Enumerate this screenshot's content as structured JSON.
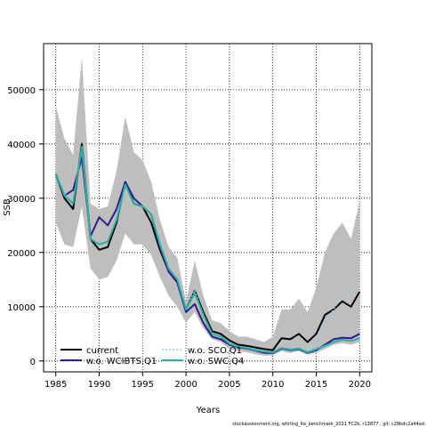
{
  "chart_data": {
    "type": "line",
    "title": "",
    "xlabel": "Years",
    "ylabel": "SSB",
    "xlim": [
      1983.6,
      2021.4
    ],
    "ylim": [
      -2000,
      58500
    ],
    "grid": true,
    "legend_position": "bottom-left",
    "x_ticks": [
      1985,
      1990,
      1995,
      2000,
      2005,
      2010,
      2015,
      2020
    ],
    "y_ticks": [
      0,
      10000,
      20000,
      30000,
      40000,
      50000
    ],
    "x_tick_labels": [
      "1985",
      "1990",
      "1995",
      "2000",
      "2005",
      "2010",
      "2015",
      "2020"
    ],
    "y_tick_labels": [
      "0",
      "10000",
      "20000",
      "30000",
      "40000",
      "50000"
    ],
    "x": [
      1985,
      1986,
      1987,
      1988,
      1989,
      1990,
      1991,
      1992,
      1993,
      1994,
      1995,
      1996,
      1997,
      1998,
      1999,
      2000,
      2001,
      2002,
      2003,
      2004,
      2005,
      2006,
      2007,
      2008,
      2009,
      2010,
      2011,
      2012,
      2013,
      2014,
      2015,
      2016,
      2017,
      2018,
      2019,
      2020
    ],
    "confidence_band": {
      "color": "#bebebe",
      "upper": [
        47000,
        41000,
        38000,
        56000,
        29000,
        28000,
        28500,
        35000,
        45000,
        38500,
        37000,
        33000,
        26000,
        21000,
        19000,
        11000,
        18500,
        12000,
        7500,
        7000,
        5500,
        4500,
        4500,
        4000,
        3500,
        4500,
        9500,
        9500,
        11500,
        9000,
        13500,
        20000,
        23500,
        25500,
        22500,
        29500
      ],
      "lower": [
        25500,
        21500,
        21000,
        28500,
        17000,
        15000,
        15500,
        18500,
        23500,
        21500,
        21500,
        19500,
        15500,
        12000,
        10000,
        7000,
        9000,
        6000,
        4000,
        3500,
        2200,
        1800,
        1600,
        1200,
        1000,
        1000,
        1800,
        1500,
        1800,
        1200,
        1500,
        2200,
        3000,
        3300,
        3000,
        3500
      ]
    },
    "series": [
      {
        "name": "current",
        "color": "#000000",
        "dash": "solid",
        "width": 2,
        "values": [
          34500,
          30000,
          28000,
          40000,
          22500,
          20500,
          21000,
          25500,
          33000,
          29000,
          28500,
          25500,
          20500,
          16500,
          14500,
          9500,
          13000,
          9000,
          5500,
          5000,
          3800,
          3000,
          2800,
          2500,
          2200,
          2000,
          4200,
          4000,
          5000,
          3500,
          5000,
          8500,
          9500,
          11000,
          10000,
          12800
        ]
      },
      {
        "name": "w.o. WCIBTS.Q1",
        "color": "#2b1b8f",
        "dash": "solid",
        "width": 2,
        "values": [
          34500,
          30500,
          31500,
          37500,
          23000,
          26500,
          25000,
          28000,
          33000,
          30000,
          28500,
          27000,
          21000,
          16500,
          14500,
          9000,
          10500,
          7000,
          4500,
          4000,
          3000,
          2500,
          2300,
          1900,
          1500,
          1500,
          2300,
          2000,
          2200,
          1500,
          2000,
          3000,
          4000,
          4300,
          4200,
          5000
        ]
      },
      {
        "name": "w.o. SCO.Q1",
        "color": "#87ceeb",
        "dash": "dotted",
        "width": 1.5,
        "values": [
          34500,
          31000,
          29000,
          39000,
          22500,
          21500,
          22000,
          26000,
          32500,
          29000,
          28500,
          27000,
          21500,
          17000,
          15000,
          9500,
          13000,
          8500,
          5000,
          4500,
          3300,
          2700,
          2500,
          2200,
          1800,
          1700,
          2500,
          2300,
          2500,
          1800,
          2800,
          7000,
          9500,
          12000,
          13000,
          12800
        ]
      },
      {
        "name": "w.o. SWC.Q4",
        "color": "#2ab0a0",
        "dash": "solid",
        "width": 2,
        "values": [
          34500,
          30500,
          29000,
          39500,
          22500,
          21500,
          22000,
          26000,
          32500,
          29000,
          28500,
          27000,
          21500,
          17000,
          15000,
          9500,
          12500,
          8500,
          5000,
          4500,
          3200,
          2600,
          2400,
          2000,
          1700,
          1600,
          2400,
          2100,
          2300,
          1600,
          2200,
          2800,
          3500,
          3900,
          3700,
          4200
        ]
      }
    ]
  },
  "footer_text": "stockassessment.org, whiting_6a_benchmark_2021 FC2b, r13877 , git: c28bdc2a44ad"
}
